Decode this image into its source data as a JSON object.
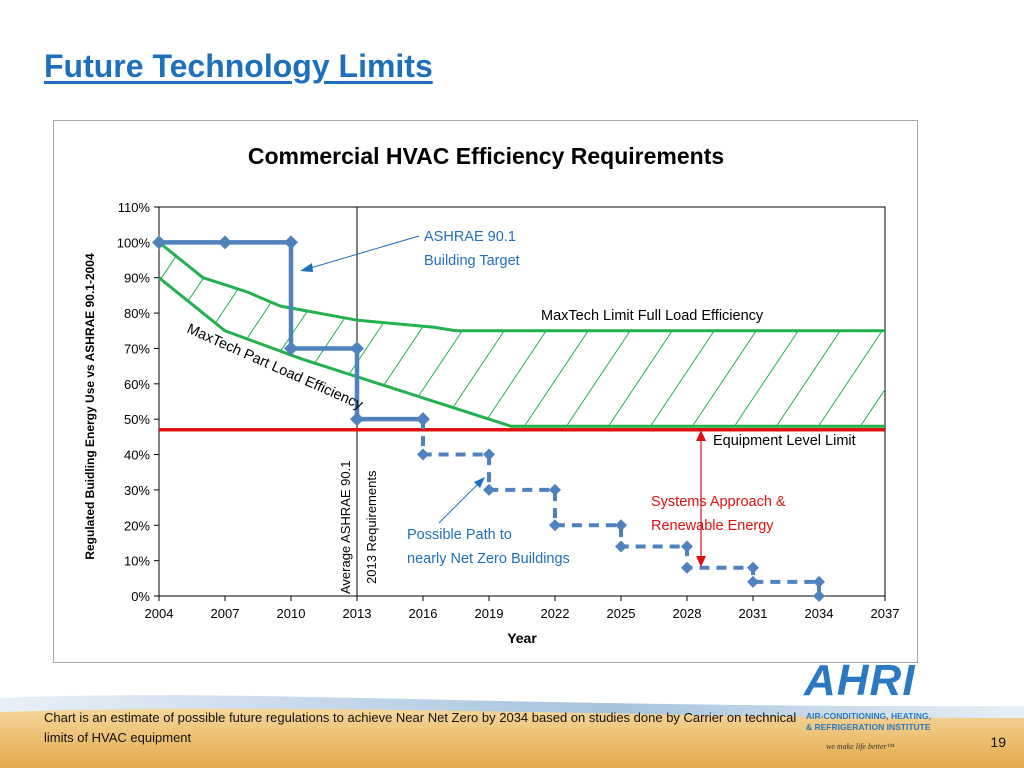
{
  "slide": {
    "title": "Future Technology Limits",
    "page_number": "19",
    "footnote": "Chart is an estimate of possible future regulations to achieve Near Net Zero by 2034 based on studies done by Carrier on technical limits of HVAC equipment"
  },
  "logo": {
    "name": "AHRI",
    "line1": "AIR-CONDITIONING, HEATING,",
    "line2": "& REFRIGERATION INSTITUTE",
    "tagline": "we make life better™"
  },
  "colors": {
    "title": "#1f6fbf",
    "step_line": "#4f81bd",
    "maxtech": "#22b14c",
    "equipment_limit": "#e01010",
    "annotation_blue": "#1f6fbf",
    "annotation_red": "#e01010"
  },
  "chart_data": {
    "type": "line",
    "title": "Commercial HVAC Efficiency Requirements",
    "xlabel": "Year",
    "ylabel": "Regulated Buidling Energy Use vs ASHRAE 90.1-2004",
    "xlim": [
      2004,
      2037
    ],
    "ylim": [
      0,
      110
    ],
    "x_ticks": [
      2004,
      2007,
      2010,
      2013,
      2016,
      2019,
      2022,
      2025,
      2028,
      2031,
      2034,
      2037
    ],
    "y_ticks": [
      0,
      10,
      20,
      30,
      40,
      50,
      60,
      70,
      80,
      90,
      100,
      110
    ],
    "y_tick_format": "percent",
    "grid": false,
    "series": [
      {
        "name": "ASHRAE 90.1 Building Target",
        "style": "solid-step",
        "points": [
          [
            2004,
            100
          ],
          [
            2007,
            100
          ],
          [
            2010,
            100
          ],
          [
            2010,
            70
          ],
          [
            2013,
            70
          ],
          [
            2013,
            50
          ],
          [
            2016,
            50
          ]
        ]
      },
      {
        "name": "Possible Path to nearly Net Zero Buildings",
        "style": "dashed-step",
        "points": [
          [
            2016,
            50
          ],
          [
            2016,
            40
          ],
          [
            2019,
            40
          ],
          [
            2019,
            30
          ],
          [
            2022,
            30
          ],
          [
            2022,
            20
          ],
          [
            2025,
            20
          ],
          [
            2025,
            14
          ],
          [
            2028,
            14
          ],
          [
            2028,
            8
          ],
          [
            2031,
            8
          ],
          [
            2031,
            4
          ],
          [
            2034,
            4
          ],
          [
            2034,
            0
          ]
        ]
      },
      {
        "name": "MaxTech Limit Full Load Efficiency",
        "style": "curve",
        "points": [
          [
            2004,
            100
          ],
          [
            2006,
            90
          ],
          [
            2008,
            86
          ],
          [
            2009.5,
            82
          ],
          [
            2013,
            78
          ],
          [
            2016.5,
            76
          ],
          [
            2017.5,
            75
          ],
          [
            2037,
            75
          ]
        ]
      },
      {
        "name": "MaxTech Part Load Efficiency",
        "style": "curve",
        "points": [
          [
            2004,
            90
          ],
          [
            2007,
            75
          ],
          [
            2010.5,
            67
          ],
          [
            2014,
            60
          ],
          [
            2018,
            52
          ],
          [
            2020,
            48
          ],
          [
            2037,
            48
          ]
        ]
      },
      {
        "name": "Equipment Level Limit",
        "style": "flat",
        "points": [
          [
            2004,
            47
          ],
          [
            2037,
            47
          ]
        ]
      }
    ],
    "reference_line": {
      "x": 2013,
      "label_line1": "Average ASHRAE 90.1",
      "label_line2": "2013 Requirements"
    },
    "annotations": {
      "ashrae_target": [
        "ASHRAE 90.1",
        "Building Target"
      ],
      "maxtech_full": "MaxTech Limit Full Load Efficiency",
      "maxtech_part": "MaxTech Part Load Efficiency",
      "equipment_limit": "Equipment Level Limit",
      "systems_approach": [
        "Systems Approach &",
        "Renewable Energy"
      ],
      "possible_path": [
        "Possible Path to",
        "nearly Net Zero Buildings"
      ]
    }
  }
}
